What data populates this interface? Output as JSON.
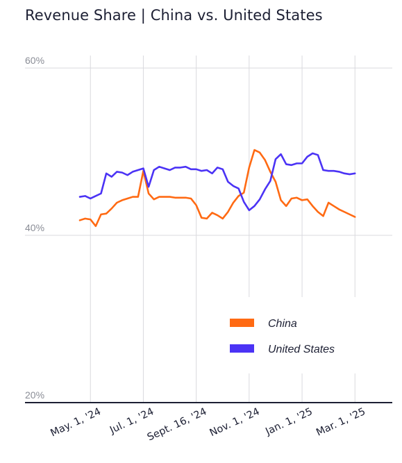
{
  "chart_data": {
    "type": "line",
    "title": "Revenue Share | China vs. United States",
    "xlabel": "",
    "ylabel": "",
    "ylim": [
      20,
      60
    ],
    "y_ticks": [
      "60%",
      "40%",
      "20%"
    ],
    "y_tick_values": [
      60,
      40,
      20
    ],
    "x_tick_labels": [
      "May. 1, '24",
      "Jul. 1, '24",
      "Sept. 16, '24",
      "Nov. 1, '24",
      "Jan. 1, '25",
      "Mar. 1, '25"
    ],
    "x_tick_index": [
      2,
      12,
      22,
      32,
      42,
      52
    ],
    "grid": true,
    "legend_placement": "bottom-right",
    "series": [
      {
        "name": "China",
        "color": "#ff6a13",
        "values": [
          41.8,
          42.0,
          41.9,
          41.1,
          42.5,
          42.6,
          43.2,
          43.9,
          44.2,
          44.4,
          44.6,
          44.6,
          47.7,
          45.0,
          44.3,
          44.6,
          44.6,
          44.6,
          44.5,
          44.5,
          44.5,
          44.4,
          43.6,
          42.1,
          42.0,
          42.7,
          42.4,
          42.0,
          42.8,
          43.9,
          44.7,
          45.1,
          48.1,
          50.2,
          49.9,
          49.0,
          47.6,
          46.4,
          44.2,
          43.5,
          44.4,
          44.5,
          44.2,
          44.3,
          43.5,
          42.8,
          42.3,
          43.9,
          43.5,
          43.1,
          42.8,
          42.5,
          42.2
        ]
      },
      {
        "name": "United States",
        "color": "#4b33f5",
        "values": [
          44.6,
          44.7,
          44.4,
          44.7,
          45.0,
          47.4,
          47.0,
          47.6,
          47.5,
          47.2,
          47.6,
          47.8,
          48.0,
          45.8,
          47.8,
          48.2,
          48.0,
          47.8,
          48.1,
          48.1,
          48.2,
          47.9,
          47.9,
          47.7,
          47.8,
          47.4,
          48.1,
          47.9,
          46.4,
          45.9,
          45.6,
          44.0,
          43.0,
          43.5,
          44.3,
          45.5,
          46.5,
          49.1,
          49.7,
          48.5,
          48.4,
          48.6,
          48.6,
          49.4,
          49.8,
          49.6,
          47.8,
          47.7,
          47.7,
          47.6,
          47.4,
          47.3,
          47.4
        ]
      }
    ]
  }
}
